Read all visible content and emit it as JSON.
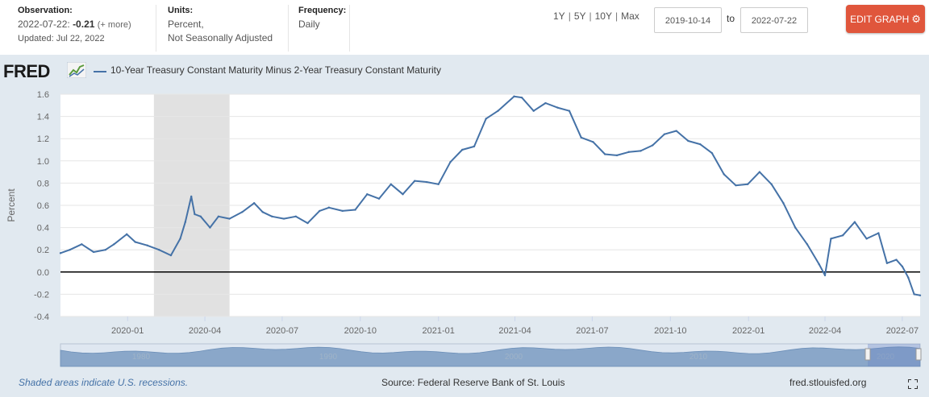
{
  "header": {
    "observation_label": "Observation:",
    "observation_date": "2022-07-22:",
    "observation_value": "-0.21",
    "observation_more": "(+ more)",
    "updated": "Updated: Jul 22, 2022",
    "units_label": "Units:",
    "units_line1": "Percent,",
    "units_line2": "Not Seasonally Adjusted",
    "frequency_label": "Frequency:",
    "frequency_value": "Daily",
    "ranges": [
      "1Y",
      "5Y",
      "10Y",
      "Max"
    ],
    "date_from": "2019-10-14",
    "to_label": "to",
    "date_to": "2022-07-22",
    "edit_label": "EDIT GRAPH"
  },
  "logo_text": "FRED",
  "footer": {
    "note": "Shaded areas indicate U.S. recessions.",
    "source": "Source: Federal Reserve Bank of St. Louis",
    "site": "fred.stlouisfed.org"
  },
  "colors": {
    "series": "#4572a7",
    "recession": "#e1e1e1",
    "accent": "#e0563c",
    "panel": "#e1e9f0"
  },
  "navigator": {
    "labels": [
      "1980",
      "1990",
      "2000",
      "2010",
      "2020"
    ]
  },
  "chart_data": {
    "type": "line",
    "title": "",
    "legend": "10-Year Treasury Constant Maturity Minus 2-Year Treasury Constant Maturity",
    "ylabel": "Percent",
    "xlabel": "",
    "ylim": [
      -0.4,
      1.6
    ],
    "yticks": [
      -0.4,
      -0.2,
      0.0,
      0.2,
      0.4,
      0.6,
      0.8,
      1.0,
      1.2,
      1.4,
      1.6
    ],
    "ytick_labels": [
      "-0.4",
      "-0.2",
      "0.0",
      "0.2",
      "0.4",
      "0.6",
      "0.8",
      "1.0",
      "1.2",
      "1.4",
      "1.6"
    ],
    "xrange": [
      "2019-10-14",
      "2022-07-22"
    ],
    "xticks": [
      "2020-01",
      "2020-04",
      "2020-07",
      "2020-10",
      "2021-01",
      "2021-04",
      "2021-07",
      "2021-10",
      "2022-01",
      "2022-04",
      "2022-07"
    ],
    "recessions": [
      [
        "2020-02-01",
        "2020-04-30"
      ]
    ],
    "zero_line": 0,
    "series": [
      {
        "name": "10-Year Treasury Constant Maturity Minus 2-Year Treasury Constant Maturity",
        "x": [
          "2019-10-14",
          "2019-10-25",
          "2019-11-08",
          "2019-11-22",
          "2019-12-06",
          "2019-12-16",
          "2019-12-31",
          "2020-01-10",
          "2020-01-24",
          "2020-02-07",
          "2020-02-21",
          "2020-03-03",
          "2020-03-09",
          "2020-03-16",
          "2020-03-20",
          "2020-03-27",
          "2020-04-07",
          "2020-04-17",
          "2020-04-30",
          "2020-05-15",
          "2020-05-29",
          "2020-06-08",
          "2020-06-19",
          "2020-07-03",
          "2020-07-17",
          "2020-07-31",
          "2020-08-14",
          "2020-08-25",
          "2020-09-10",
          "2020-09-25",
          "2020-10-09",
          "2020-10-23",
          "2020-11-06",
          "2020-11-20",
          "2020-12-04",
          "2020-12-18",
          "2021-01-01",
          "2021-01-15",
          "2021-01-29",
          "2021-02-12",
          "2021-02-26",
          "2021-03-12",
          "2021-03-31",
          "2021-04-09",
          "2021-04-23",
          "2021-05-07",
          "2021-05-21",
          "2021-06-04",
          "2021-06-18",
          "2021-07-02",
          "2021-07-16",
          "2021-07-30",
          "2021-08-13",
          "2021-08-27",
          "2021-09-10",
          "2021-09-24",
          "2021-10-08",
          "2021-10-22",
          "2021-11-05",
          "2021-11-19",
          "2021-12-03",
          "2021-12-17",
          "2021-12-31",
          "2022-01-14",
          "2022-01-28",
          "2022-02-11",
          "2022-02-25",
          "2022-03-11",
          "2022-03-25",
          "2022-04-01",
          "2022-04-08",
          "2022-04-22",
          "2022-05-06",
          "2022-05-20",
          "2022-06-03",
          "2022-06-13",
          "2022-06-24",
          "2022-07-01",
          "2022-07-08",
          "2022-07-15",
          "2022-07-22"
        ],
        "values": [
          0.17,
          0.2,
          0.25,
          0.18,
          0.2,
          0.25,
          0.34,
          0.27,
          0.24,
          0.2,
          0.15,
          0.3,
          0.45,
          0.68,
          0.52,
          0.5,
          0.4,
          0.5,
          0.48,
          0.54,
          0.62,
          0.54,
          0.5,
          0.48,
          0.5,
          0.44,
          0.55,
          0.58,
          0.55,
          0.56,
          0.7,
          0.66,
          0.79,
          0.7,
          0.82,
          0.81,
          0.79,
          0.99,
          1.1,
          1.13,
          1.38,
          1.45,
          1.58,
          1.57,
          1.45,
          1.52,
          1.48,
          1.45,
          1.21,
          1.17,
          1.06,
          1.05,
          1.08,
          1.09,
          1.14,
          1.24,
          1.27,
          1.18,
          1.15,
          1.07,
          0.88,
          0.78,
          0.79,
          0.9,
          0.79,
          0.62,
          0.4,
          0.25,
          0.07,
          -0.03,
          0.3,
          0.33,
          0.45,
          0.3,
          0.35,
          0.08,
          0.11,
          0.05,
          -0.05,
          -0.2,
          -0.21
        ]
      }
    ]
  }
}
